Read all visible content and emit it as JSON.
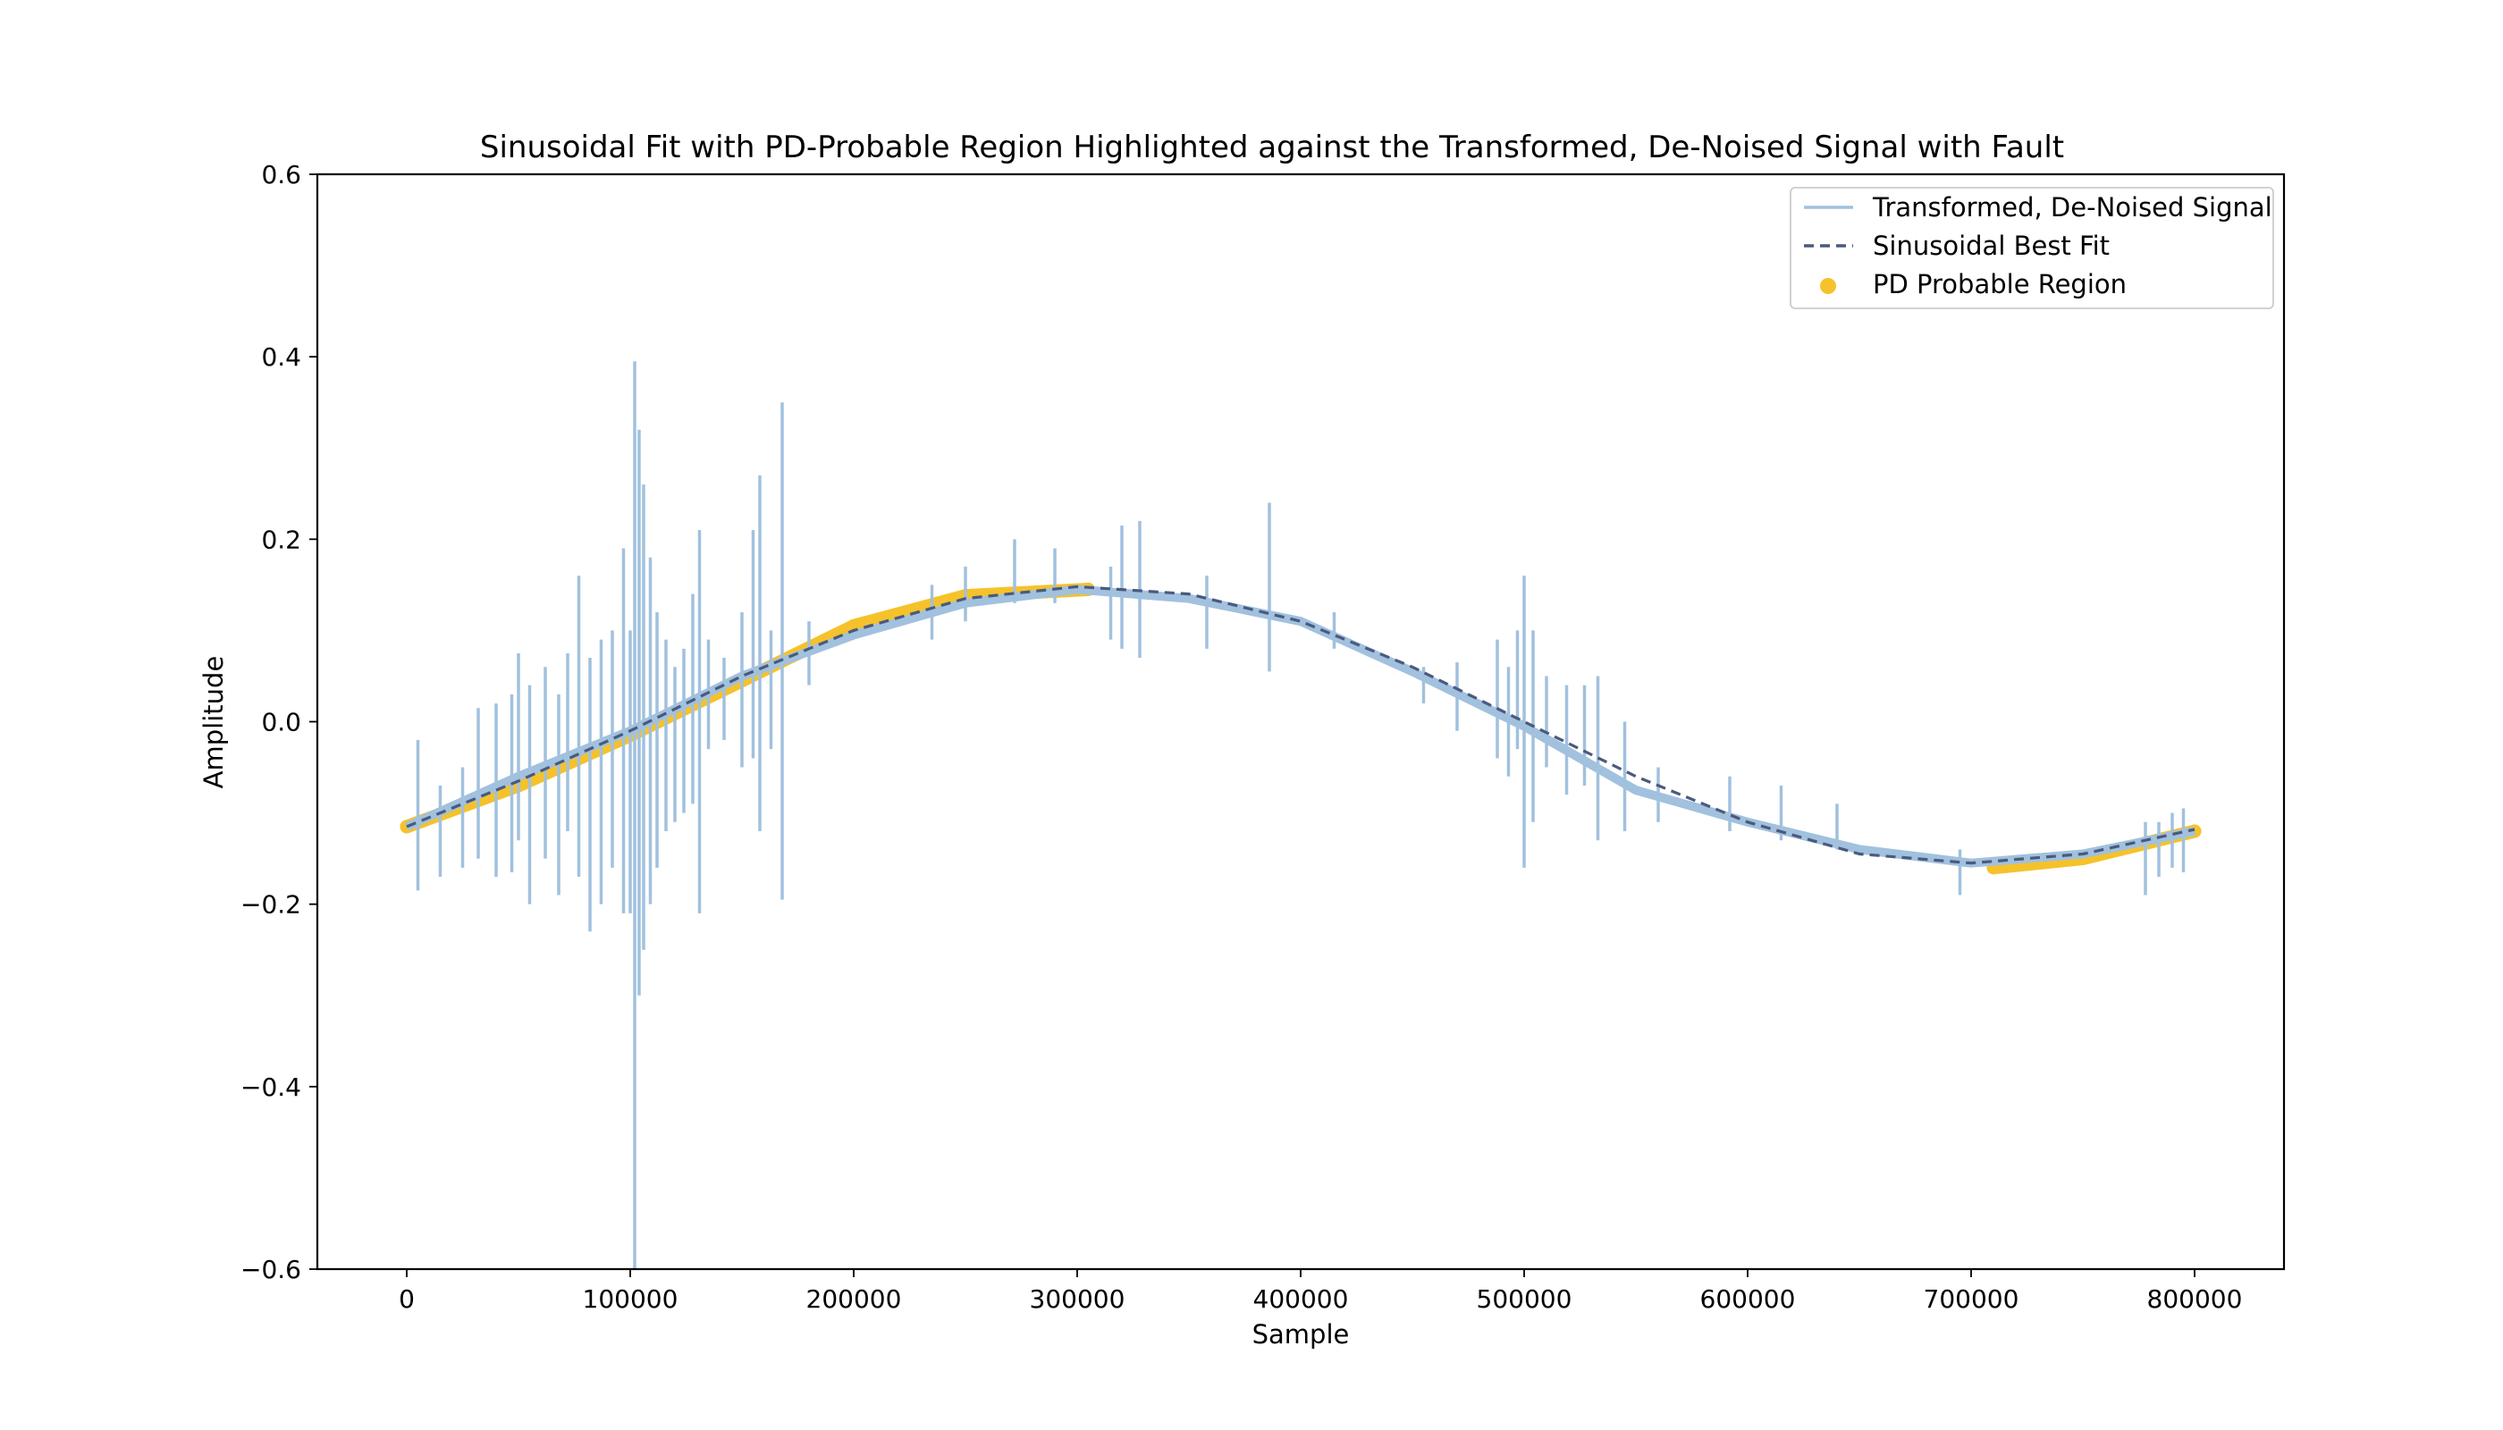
{
  "chart_data": {
    "type": "line",
    "title": "Sinusoidal Fit with PD-Probable Region Highlighted against the Transformed, De-Noised Signal with Fault",
    "xlabel": "Sample",
    "ylabel": "Amplitude",
    "xlim": [
      -40000,
      840000
    ],
    "ylim": [
      -0.6,
      0.6
    ],
    "x_ticks": [
      0,
      100000,
      200000,
      300000,
      400000,
      500000,
      600000,
      700000,
      800000
    ],
    "x_tick_labels": [
      "0",
      "100000",
      "200000",
      "300000",
      "400000",
      "500000",
      "600000",
      "700000",
      "800000"
    ],
    "y_ticks": [
      -0.6,
      -0.4,
      -0.2,
      0.0,
      0.2,
      0.4,
      0.6
    ],
    "y_tick_labels": [
      "−0.6",
      "−0.4",
      "−0.2",
      "0.0",
      "0.2",
      "0.4",
      "0.6"
    ],
    "grid": false,
    "legend_position": "top-right",
    "series": [
      {
        "name": "Transformed, De-Noised Signal",
        "style": "solid",
        "color": "#a1c1de",
        "x": [
          0,
          50000,
          100000,
          150000,
          200000,
          250000,
          300000,
          350000,
          400000,
          450000,
          500000,
          550000,
          600000,
          650000,
          700000,
          750000,
          800000
        ],
        "y": [
          -0.115,
          -0.06,
          -0.01,
          0.05,
          0.095,
          0.13,
          0.145,
          0.135,
          0.11,
          0.055,
          -0.005,
          -0.075,
          -0.11,
          -0.14,
          -0.155,
          -0.145,
          -0.12
        ],
        "spikes": [
          {
            "x": 5000,
            "y": [
              -0.185,
              -0.02
            ]
          },
          {
            "x": 15000,
            "y": [
              -0.17,
              -0.07
            ]
          },
          {
            "x": 25000,
            "y": [
              -0.16,
              -0.05
            ]
          },
          {
            "x": 32000,
            "y": [
              -0.15,
              0.015
            ]
          },
          {
            "x": 40000,
            "y": [
              -0.17,
              0.02
            ]
          },
          {
            "x": 47000,
            "y": [
              -0.165,
              0.03
            ]
          },
          {
            "x": 50000,
            "y": [
              -0.13,
              0.075
            ]
          },
          {
            "x": 55000,
            "y": [
              -0.2,
              0.04
            ]
          },
          {
            "x": 62000,
            "y": [
              -0.15,
              0.06
            ]
          },
          {
            "x": 68000,
            "y": [
              -0.19,
              0.03
            ]
          },
          {
            "x": 72000,
            "y": [
              -0.12,
              0.075
            ]
          },
          {
            "x": 77000,
            "y": [
              -0.17,
              0.16
            ]
          },
          {
            "x": 82000,
            "y": [
              -0.23,
              0.07
            ]
          },
          {
            "x": 87000,
            "y": [
              -0.2,
              0.09
            ]
          },
          {
            "x": 92000,
            "y": [
              -0.16,
              0.1
            ]
          },
          {
            "x": 97000,
            "y": [
              -0.21,
              0.19
            ]
          },
          {
            "x": 100000,
            "y": [
              -0.21,
              0.1
            ]
          },
          {
            "x": 102000,
            "y": [
              -0.6,
              0.395
            ]
          },
          {
            "x": 104000,
            "y": [
              -0.3,
              0.32
            ]
          },
          {
            "x": 106000,
            "y": [
              -0.25,
              0.26
            ]
          },
          {
            "x": 109000,
            "y": [
              -0.2,
              0.18
            ]
          },
          {
            "x": 112000,
            "y": [
              -0.16,
              0.12
            ]
          },
          {
            "x": 116000,
            "y": [
              -0.12,
              0.09
            ]
          },
          {
            "x": 120000,
            "y": [
              -0.11,
              0.06
            ]
          },
          {
            "x": 124000,
            "y": [
              -0.1,
              0.08
            ]
          },
          {
            "x": 128000,
            "y": [
              -0.09,
              0.14
            ]
          },
          {
            "x": 131000,
            "y": [
              -0.21,
              0.21
            ]
          },
          {
            "x": 135000,
            "y": [
              -0.03,
              0.09
            ]
          },
          {
            "x": 142000,
            "y": [
              -0.02,
              0.07
            ]
          },
          {
            "x": 150000,
            "y": [
              -0.05,
              0.12
            ]
          },
          {
            "x": 155000,
            "y": [
              -0.04,
              0.21
            ]
          },
          {
            "x": 158000,
            "y": [
              -0.12,
              0.27
            ]
          },
          {
            "x": 163000,
            "y": [
              -0.03,
              0.1
            ]
          },
          {
            "x": 168000,
            "y": [
              -0.195,
              0.35
            ]
          },
          {
            "x": 180000,
            "y": [
              0.04,
              0.11
            ]
          },
          {
            "x": 235000,
            "y": [
              0.09,
              0.15
            ]
          },
          {
            "x": 250000,
            "y": [
              0.11,
              0.17
            ]
          },
          {
            "x": 272000,
            "y": [
              0.13,
              0.2
            ]
          },
          {
            "x": 290000,
            "y": [
              0.13,
              0.19
            ]
          },
          {
            "x": 315000,
            "y": [
              0.09,
              0.17
            ]
          },
          {
            "x": 320000,
            "y": [
              0.08,
              0.215
            ]
          },
          {
            "x": 328000,
            "y": [
              0.07,
              0.22
            ]
          },
          {
            "x": 358000,
            "y": [
              0.08,
              0.16
            ]
          },
          {
            "x": 386000,
            "y": [
              0.055,
              0.24
            ]
          },
          {
            "x": 415000,
            "y": [
              0.08,
              0.12
            ]
          },
          {
            "x": 455000,
            "y": [
              0.02,
              0.06
            ]
          },
          {
            "x": 470000,
            "y": [
              -0.01,
              0.065
            ]
          },
          {
            "x": 488000,
            "y": [
              -0.04,
              0.09
            ]
          },
          {
            "x": 493000,
            "y": [
              -0.06,
              0.06
            ]
          },
          {
            "x": 497000,
            "y": [
              -0.03,
              0.1
            ]
          },
          {
            "x": 500000,
            "y": [
              -0.16,
              0.16
            ]
          },
          {
            "x": 504000,
            "y": [
              -0.11,
              0.1
            ]
          },
          {
            "x": 510000,
            "y": [
              -0.05,
              0.05
            ]
          },
          {
            "x": 519000,
            "y": [
              -0.08,
              0.04
            ]
          },
          {
            "x": 527000,
            "y": [
              -0.07,
              0.04
            ]
          },
          {
            "x": 533000,
            "y": [
              -0.13,
              0.05
            ]
          },
          {
            "x": 545000,
            "y": [
              -0.12,
              0.0
            ]
          },
          {
            "x": 560000,
            "y": [
              -0.11,
              -0.05
            ]
          },
          {
            "x": 592000,
            "y": [
              -0.12,
              -0.06
            ]
          },
          {
            "x": 615000,
            "y": [
              -0.13,
              -0.07
            ]
          },
          {
            "x": 640000,
            "y": [
              -0.14,
              -0.09
            ]
          },
          {
            "x": 695000,
            "y": [
              -0.19,
              -0.14
            ]
          },
          {
            "x": 778000,
            "y": [
              -0.19,
              -0.11
            ]
          },
          {
            "x": 784000,
            "y": [
              -0.17,
              -0.11
            ]
          },
          {
            "x": 790000,
            "y": [
              -0.16,
              -0.1
            ]
          },
          {
            "x": 795000,
            "y": [
              -0.165,
              -0.095
            ]
          }
        ]
      },
      {
        "name": "Sinusoidal Best Fit",
        "style": "dashed",
        "color": "#4a5a7e",
        "x": [
          0,
          50000,
          100000,
          150000,
          200000,
          250000,
          300000,
          350000,
          400000,
          450000,
          500000,
          550000,
          600000,
          650000,
          700000,
          750000,
          800000
        ],
        "y": [
          -0.115,
          -0.065,
          -0.01,
          0.05,
          0.1,
          0.135,
          0.148,
          0.14,
          0.11,
          0.06,
          0.0,
          -0.06,
          -0.11,
          -0.145,
          -0.155,
          -0.145,
          -0.118
        ]
      },
      {
        "name": "PD Probable Region",
        "style": "scatter",
        "color": "#f5c22b",
        "x": [
          0,
          50000,
          100000,
          150000,
          200000,
          250000,
          305000,
          710000,
          750000,
          800000
        ],
        "y": [
          -0.115,
          -0.07,
          -0.015,
          0.045,
          0.105,
          0.138,
          0.145,
          -0.16,
          -0.15,
          -0.12
        ]
      }
    ]
  }
}
